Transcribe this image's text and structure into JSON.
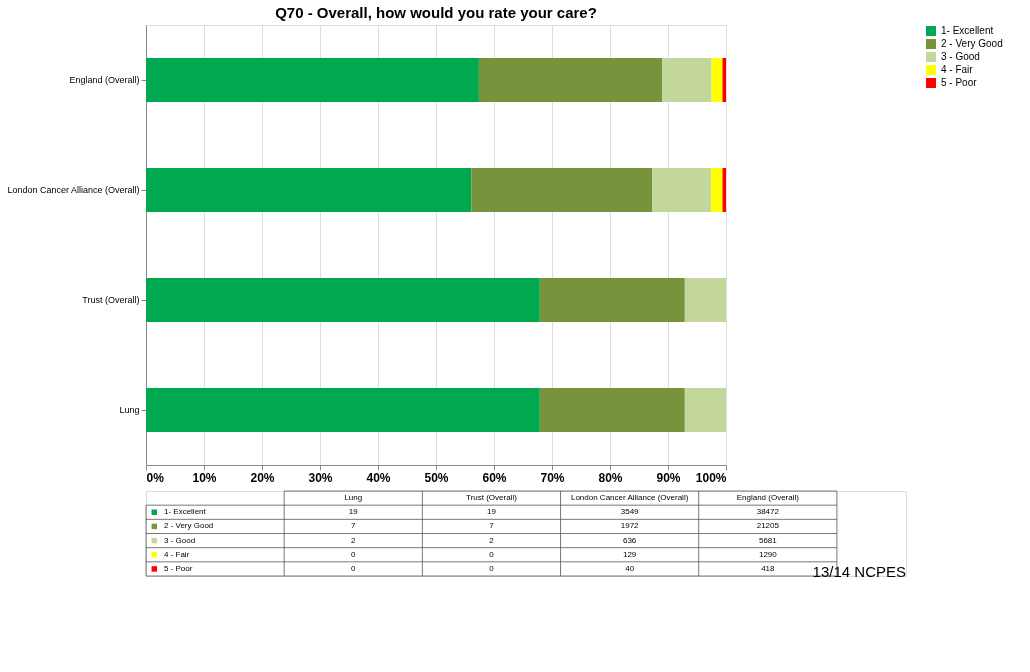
{
  "chart_data": [
    {
      "type": "bar",
      "orientation": "horizontal",
      "stacked": true,
      "title": "Q70 - Overall, how would you rate your care?",
      "categories": [
        "England (Overall)",
        "London Cancer Alliance (Overall)",
        "Trust (Overall)",
        "Lung"
      ],
      "series": [
        {
          "name": "1- Excellent",
          "color": "#00a84f",
          "values": [
            57.4,
            56.1,
            67.9,
            67.9
          ]
        },
        {
          "name": "2 - Very Good",
          "color": "#77933c",
          "values": [
            31.6,
            31.2,
            25.0,
            25.0
          ]
        },
        {
          "name": "3 - Good",
          "color": "#c3d69b",
          "values": [
            8.5,
            10.1,
            7.1,
            7.1
          ]
        },
        {
          "name": "4 - Fair",
          "color": "#ffff00",
          "values": [
            1.9,
            2.0,
            0,
            0
          ]
        },
        {
          "name": "5 - Poor",
          "color": "#ff0000",
          "values": [
            0.6,
            0.6,
            0,
            0
          ]
        }
      ],
      "xlim": [
        0,
        100
      ],
      "xticks": [
        {
          "value": 0,
          "label": "0%"
        },
        {
          "value": 10,
          "label": "10%"
        },
        {
          "value": 20,
          "label": "20%"
        },
        {
          "value": 30,
          "label": "30%"
        },
        {
          "value": 40,
          "label": "40%"
        },
        {
          "value": 50,
          "label": "50%"
        },
        {
          "value": 60,
          "label": "60%"
        },
        {
          "value": 70,
          "label": "70%"
        },
        {
          "value": 80,
          "label": "80%"
        },
        {
          "value": 90,
          "label": "90%"
        },
        {
          "value": 100,
          "label": "100%"
        }
      ],
      "grid": "x",
      "legend": "right"
    },
    {
      "type": "other",
      "categories": [
        "Lung",
        "Trust (Overall)",
        "London Cancer Alliance (Overall)",
        "England (Overall)"
      ],
      "series": [
        {
          "name": "1- Excellent",
          "values": [
            19,
            19,
            3549,
            38472
          ]
        },
        {
          "name": "2 - Very Good",
          "values": [
            7,
            7,
            1972,
            21205
          ]
        },
        {
          "name": "3 - Good",
          "values": [
            2,
            2,
            636,
            5681
          ]
        },
        {
          "name": "4 - Fair",
          "values": [
            0,
            0,
            129,
            1290
          ]
        },
        {
          "name": "5 - Poor",
          "values": [
            0,
            0,
            40,
            418
          ]
        }
      ],
      "data_labels": true,
      "annotations": [
        "13/14 NCPES"
      ]
    }
  ]
}
